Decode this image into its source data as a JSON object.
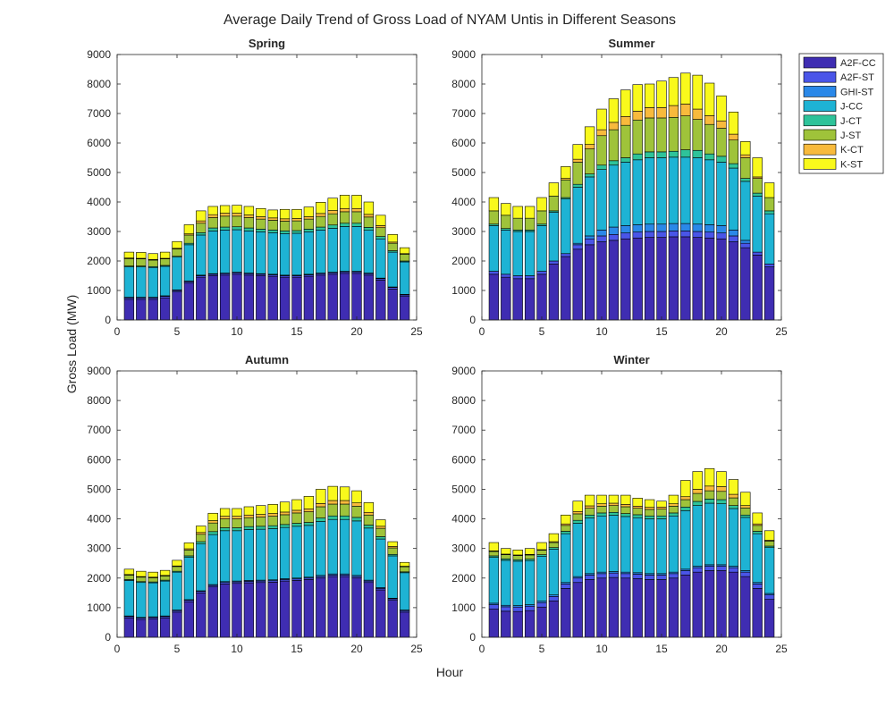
{
  "figure": {
    "title": "Average Daily Trend of Gross Load of NYAM Untis in Different Seasons",
    "xlabel": "Hour",
    "ylabel": "Gross Load (MW)"
  },
  "legend": {
    "placement": "top-right, outside",
    "entries": [
      "A2F-CC",
      "A2F-ST",
      "GHI-ST",
      "J-CC",
      "J-CT",
      "J-ST",
      "K-CT",
      "K-ST"
    ],
    "colors": [
      "#3f2db2",
      "#4a55e8",
      "#2a88e8",
      "#1eb3d4",
      "#2ec39a",
      "#9fc33a",
      "#f8ba3c",
      "#f9f91c"
    ]
  },
  "chart_data": [
    {
      "type": "bar",
      "stacked": true,
      "title": "Spring",
      "x": [
        1,
        2,
        3,
        4,
        5,
        6,
        7,
        8,
        9,
        10,
        11,
        12,
        13,
        14,
        15,
        16,
        17,
        18,
        19,
        20,
        21,
        22,
        23,
        24
      ],
      "xlim": [
        0,
        25
      ],
      "ylim": [
        0,
        9000
      ],
      "xticks": [
        0,
        5,
        10,
        15,
        20,
        25
      ],
      "yticks": [
        0,
        1000,
        2000,
        3000,
        4000,
        5000,
        6000,
        7000,
        8000,
        9000
      ],
      "series": [
        {
          "name": "A2F-CC",
          "values": [
            700,
            700,
            700,
            750,
            950,
            1250,
            1450,
            1500,
            1520,
            1550,
            1520,
            1500,
            1480,
            1450,
            1450,
            1480,
            1520,
            1550,
            1580,
            1580,
            1520,
            1350,
            1050,
            800
          ]
        },
        {
          "name": "A2F-ST",
          "values": [
            50,
            50,
            50,
            50,
            50,
            50,
            50,
            50,
            50,
            50,
            50,
            50,
            50,
            50,
            50,
            50,
            50,
            50,
            50,
            50,
            50,
            50,
            50,
            50
          ]
        },
        {
          "name": "GHI-ST",
          "values": [
            20,
            20,
            20,
            20,
            20,
            20,
            20,
            20,
            20,
            20,
            20,
            20,
            20,
            20,
            20,
            20,
            20,
            20,
            20,
            20,
            20,
            20,
            20,
            20
          ]
        },
        {
          "name": "J-CC",
          "values": [
            1030,
            1030,
            1010,
            1000,
            1110,
            1230,
            1360,
            1450,
            1460,
            1440,
            1430,
            1420,
            1410,
            1410,
            1420,
            1440,
            1460,
            1490,
            1520,
            1520,
            1450,
            1330,
            1180,
            1100
          ]
        },
        {
          "name": "J-CT",
          "values": [
            30,
            30,
            30,
            30,
            30,
            50,
            80,
            100,
            100,
            100,
            100,
            90,
            90,
            90,
            90,
            90,
            100,
            110,
            110,
            110,
            100,
            80,
            50,
            30
          ]
        },
        {
          "name": "J-ST",
          "values": [
            250,
            240,
            220,
            220,
            250,
            280,
            320,
            350,
            370,
            360,
            350,
            340,
            330,
            330,
            330,
            340,
            360,
            380,
            390,
            390,
            350,
            300,
            250,
            230
          ]
        },
        {
          "name": "K-CT",
          "values": [
            20,
            20,
            20,
            20,
            20,
            40,
            80,
            100,
            100,
            100,
            90,
            80,
            80,
            80,
            80,
            80,
            100,
            110,
            110,
            110,
            90,
            70,
            40,
            20
          ]
        },
        {
          "name": "K-ST",
          "values": [
            200,
            200,
            200,
            210,
            230,
            310,
            340,
            280,
            260,
            270,
            290,
            280,
            270,
            320,
            310,
            330,
            380,
            420,
            450,
            450,
            420,
            350,
            260,
            200
          ]
        }
      ]
    },
    {
      "type": "bar",
      "stacked": true,
      "title": "Summer",
      "x": [
        1,
        2,
        3,
        4,
        5,
        6,
        7,
        8,
        9,
        10,
        11,
        12,
        13,
        14,
        15,
        16,
        17,
        18,
        19,
        20,
        21,
        22,
        23,
        24
      ],
      "xlim": [
        0,
        25
      ],
      "ylim": [
        0,
        9000
      ],
      "xticks": [
        0,
        5,
        10,
        15,
        20,
        25
      ],
      "yticks": [
        0,
        1000,
        2000,
        3000,
        4000,
        5000,
        6000,
        7000,
        8000,
        9000
      ],
      "series": [
        {
          "name": "A2F-CC",
          "values": [
            1550,
            1450,
            1400,
            1400,
            1550,
            1900,
            2150,
            2400,
            2550,
            2650,
            2700,
            2750,
            2780,
            2800,
            2800,
            2820,
            2820,
            2800,
            2780,
            2750,
            2650,
            2450,
            2200,
            1800
          ]
        },
        {
          "name": "A2F-ST",
          "values": [
            100,
            100,
            100,
            100,
            100,
            100,
            100,
            150,
            200,
            200,
            200,
            200,
            200,
            200,
            200,
            200,
            200,
            200,
            200,
            200,
            200,
            150,
            100,
            100
          ]
        },
        {
          "name": "GHI-ST",
          "values": [
            0,
            0,
            0,
            0,
            0,
            0,
            0,
            50,
            100,
            200,
            250,
            250,
            250,
            250,
            250,
            250,
            250,
            250,
            250,
            250,
            200,
            100,
            0,
            0
          ]
        },
        {
          "name": "J-CC",
          "values": [
            1550,
            1500,
            1500,
            1500,
            1550,
            1650,
            1850,
            1900,
            2000,
            2050,
            2100,
            2150,
            2200,
            2250,
            2250,
            2250,
            2250,
            2250,
            2200,
            2150,
            2100,
            2000,
            1900,
            1700
          ]
        },
        {
          "name": "J-CT",
          "values": [
            50,
            50,
            50,
            50,
            50,
            50,
            50,
            100,
            100,
            150,
            150,
            150,
            200,
            200,
            200,
            200,
            250,
            250,
            200,
            200,
            150,
            100,
            100,
            100
          ]
        },
        {
          "name": "J-ST",
          "values": [
            450,
            450,
            400,
            400,
            450,
            500,
            600,
            750,
            850,
            1000,
            1050,
            1100,
            1150,
            1150,
            1150,
            1150,
            1150,
            1050,
            1000,
            950,
            800,
            700,
            500,
            450
          ]
        },
        {
          "name": "K-CT",
          "values": [
            0,
            0,
            0,
            0,
            0,
            0,
            50,
            100,
            150,
            200,
            250,
            300,
            300,
            350,
            350,
            400,
            400,
            350,
            300,
            250,
            200,
            100,
            50,
            0
          ]
        },
        {
          "name": "K-ST",
          "values": [
            450,
            400,
            400,
            400,
            450,
            450,
            400,
            500,
            600,
            700,
            800,
            900,
            900,
            800,
            900,
            950,
            1050,
            1150,
            1100,
            850,
            750,
            450,
            650,
            500
          ]
        }
      ]
    },
    {
      "type": "bar",
      "stacked": true,
      "title": "Autumn",
      "x": [
        1,
        2,
        3,
        4,
        5,
        6,
        7,
        8,
        9,
        10,
        11,
        12,
        13,
        14,
        15,
        16,
        17,
        18,
        19,
        20,
        21,
        22,
        23,
        24
      ],
      "xlim": [
        0,
        25
      ],
      "ylim": [
        0,
        9000
      ],
      "xticks": [
        0,
        5,
        10,
        15,
        20,
        25
      ],
      "yticks": [
        0,
        1000,
        2000,
        3000,
        4000,
        5000,
        6000,
        7000,
        8000,
        9000
      ],
      "series": [
        {
          "name": "A2F-CC",
          "values": [
            650,
            600,
            620,
            650,
            850,
            1200,
            1500,
            1700,
            1800,
            1820,
            1840,
            1850,
            1860,
            1900,
            1920,
            1950,
            2000,
            2050,
            2050,
            2000,
            1850,
            1600,
            1250,
            850
          ]
        },
        {
          "name": "A2F-ST",
          "values": [
            50,
            50,
            50,
            50,
            50,
            50,
            50,
            50,
            50,
            50,
            50,
            50,
            50,
            50,
            50,
            50,
            50,
            50,
            50,
            50,
            50,
            50,
            50,
            50
          ]
        },
        {
          "name": "GHI-ST",
          "values": [
            20,
            20,
            20,
            20,
            20,
            20,
            20,
            30,
            30,
            30,
            30,
            30,
            30,
            30,
            30,
            30,
            40,
            40,
            40,
            40,
            30,
            30,
            20,
            20
          ]
        },
        {
          "name": "J-CC",
          "values": [
            1200,
            1180,
            1150,
            1180,
            1280,
            1430,
            1580,
            1690,
            1720,
            1700,
            1720,
            1720,
            1730,
            1730,
            1750,
            1750,
            1820,
            1840,
            1840,
            1840,
            1760,
            1640,
            1430,
            1260
          ]
        },
        {
          "name": "J-CT",
          "values": [
            30,
            30,
            30,
            30,
            30,
            50,
            80,
            100,
            100,
            100,
            100,
            100,
            100,
            100,
            100,
            100,
            120,
            120,
            120,
            120,
            100,
            80,
            50,
            30
          ]
        },
        {
          "name": "J-ST",
          "values": [
            150,
            150,
            140,
            140,
            160,
            200,
            250,
            290,
            300,
            300,
            300,
            310,
            320,
            330,
            350,
            360,
            380,
            400,
            400,
            380,
            340,
            280,
            220,
            170
          ]
        },
        {
          "name": "K-CT",
          "values": [
            20,
            20,
            20,
            20,
            20,
            40,
            60,
            80,
            90,
            90,
            90,
            90,
            90,
            90,
            90,
            100,
            110,
            120,
            120,
            110,
            90,
            70,
            50,
            20
          ]
        },
        {
          "name": "K-ST",
          "values": [
            180,
            180,
            170,
            170,
            190,
            200,
            220,
            250,
            260,
            260,
            280,
            300,
            310,
            340,
            360,
            420,
            480,
            480,
            460,
            410,
            330,
            220,
            160,
            130
          ]
        }
      ]
    },
    {
      "type": "bar",
      "stacked": true,
      "title": "Winter",
      "x": [
        1,
        2,
        3,
        4,
        5,
        6,
        7,
        8,
        9,
        10,
        11,
        12,
        13,
        14,
        15,
        16,
        17,
        18,
        19,
        20,
        21,
        22,
        23,
        24
      ],
      "xlim": [
        0,
        25
      ],
      "ylim": [
        0,
        9000
      ],
      "xticks": [
        0,
        5,
        10,
        15,
        20,
        25
      ],
      "yticks": [
        0,
        1000,
        2000,
        3000,
        4000,
        5000,
        6000,
        7000,
        8000,
        9000
      ],
      "series": [
        {
          "name": "A2F-CC",
          "values": [
            950,
            880,
            870,
            900,
            1020,
            1230,
            1650,
            1850,
            1950,
            2000,
            2020,
            2000,
            1980,
            1950,
            1950,
            2000,
            2100,
            2200,
            2250,
            2250,
            2200,
            2050,
            1650,
            1280
          ]
        },
        {
          "name": "A2F-ST",
          "values": [
            150,
            150,
            150,
            150,
            150,
            150,
            150,
            150,
            150,
            150,
            150,
            150,
            150,
            150,
            150,
            150,
            150,
            150,
            150,
            150,
            150,
            150,
            150,
            150
          ]
        },
        {
          "name": "GHI-ST",
          "values": [
            50,
            50,
            50,
            50,
            50,
            50,
            50,
            50,
            50,
            50,
            50,
            50,
            50,
            50,
            50,
            50,
            50,
            50,
            50,
            50,
            50,
            50,
            50,
            50
          ]
        },
        {
          "name": "J-CC",
          "values": [
            1550,
            1520,
            1500,
            1490,
            1520,
            1550,
            1650,
            1800,
            1880,
            1900,
            1900,
            1880,
            1860,
            1850,
            1850,
            1900,
            1980,
            2050,
            2080,
            2060,
            1950,
            1800,
            1650,
            1550
          ]
        },
        {
          "name": "J-CT",
          "values": [
            50,
            50,
            50,
            50,
            50,
            50,
            80,
            100,
            100,
            100,
            100,
            100,
            100,
            100,
            100,
            100,
            120,
            140,
            140,
            140,
            100,
            80,
            80,
            50
          ]
        },
        {
          "name": "J-ST",
          "values": [
            150,
            140,
            140,
            140,
            150,
            170,
            200,
            220,
            230,
            230,
            230,
            230,
            220,
            220,
            230,
            230,
            250,
            270,
            280,
            280,
            260,
            240,
            200,
            170
          ]
        },
        {
          "name": "K-CT",
          "values": [
            20,
            20,
            20,
            20,
            20,
            30,
            50,
            80,
            80,
            80,
            80,
            80,
            70,
            70,
            70,
            80,
            100,
            140,
            160,
            160,
            120,
            80,
            50,
            30
          ]
        },
        {
          "name": "K-ST",
          "values": [
            280,
            190,
            170,
            200,
            240,
            270,
            300,
            350,
            360,
            290,
            270,
            310,
            270,
            260,
            200,
            290,
            550,
            600,
            590,
            510,
            500,
            450,
            370,
            320
          ]
        }
      ]
    }
  ]
}
